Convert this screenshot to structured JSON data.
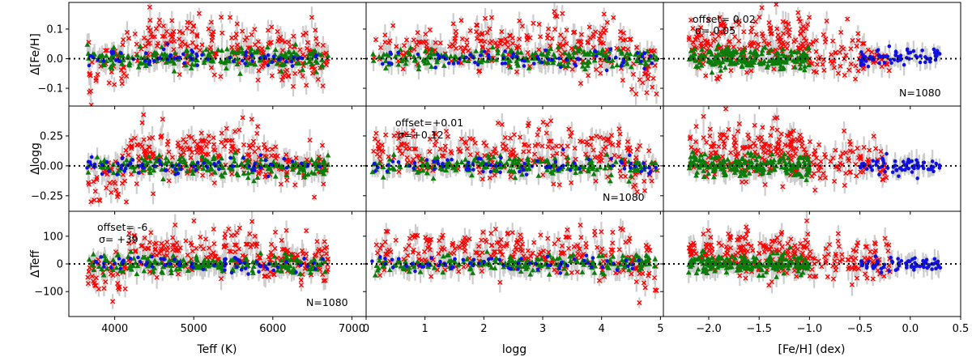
{
  "chart_data": {
    "type": "scatter",
    "layout": "3x3 grid of scatter panels",
    "colors": {
      "red": "#ff0000",
      "green": "#0a7d0a",
      "blue": "#1010e0",
      "errorbar": "#cccccc",
      "zero_line": "#000000"
    },
    "series": [
      {
        "name": "red",
        "marker": "x"
      },
      {
        "name": "green",
        "marker": "triangle"
      },
      {
        "name": "blue",
        "marker": "dot"
      }
    ],
    "rows": [
      {
        "ylabel": "Δ[Fe/H]",
        "ylim": [
          -0.16,
          0.19
        ],
        "yticks": [
          "0.1",
          "0.0",
          "−0.1"
        ],
        "ytick_values": [
          0.1,
          0.0,
          -0.1
        ]
      },
      {
        "ylabel": "Δlogg",
        "ylim": [
          -0.38,
          0.5
        ],
        "yticks": [
          "0.25",
          "0.00",
          "−0.25"
        ],
        "ytick_values": [
          0.25,
          0.0,
          -0.25
        ]
      },
      {
        "ylabel": "ΔTeff",
        "ylim": [
          -190,
          190
        ],
        "yticks": [
          "100",
          "0",
          "−100"
        ],
        "ytick_values": [
          100,
          0,
          -100
        ]
      }
    ],
    "cols": [
      {
        "xlabel": "Teff (K)",
        "xlim": [
          3420,
          7180
        ],
        "xticks": [
          "4000",
          "5000",
          "6000",
          "7000"
        ],
        "xtick_values": [
          4000,
          5000,
          6000,
          7000
        ]
      },
      {
        "xlabel": "logg",
        "xlim": [
          0,
          5.05
        ],
        "xticks": [
          "0",
          "1",
          "2",
          "3",
          "4",
          "5"
        ],
        "xtick_values": [
          0,
          1,
          2,
          3,
          4,
          5
        ]
      },
      {
        "xlabel": "[Fe/H] (dex)",
        "xlim": [
          -2.45,
          0.5
        ],
        "xticks": [
          "−2.0",
          "−1.5",
          "−1.0",
          "−0.5",
          "0.0",
          "0.5"
        ],
        "xtick_values": [
          -2.0,
          -1.5,
          -1.0,
          -0.5,
          0.0,
          0.5
        ]
      }
    ],
    "annotations": [
      {
        "panel": "row1-col3",
        "offset": "offset= 0.02",
        "sigma": "σ= 0.05",
        "n": "N=1080"
      },
      {
        "panel": "row2-col2",
        "offset": "offset=+0.01",
        "sigma": "σ=+0.12",
        "n": "N=1080"
      },
      {
        "panel": "row3-col1",
        "offset": "offset=  -6",
        "sigma": "σ= +39",
        "n": "N=1080"
      }
    ],
    "zero_line": {
      "value": 0,
      "style": "dotted"
    }
  }
}
